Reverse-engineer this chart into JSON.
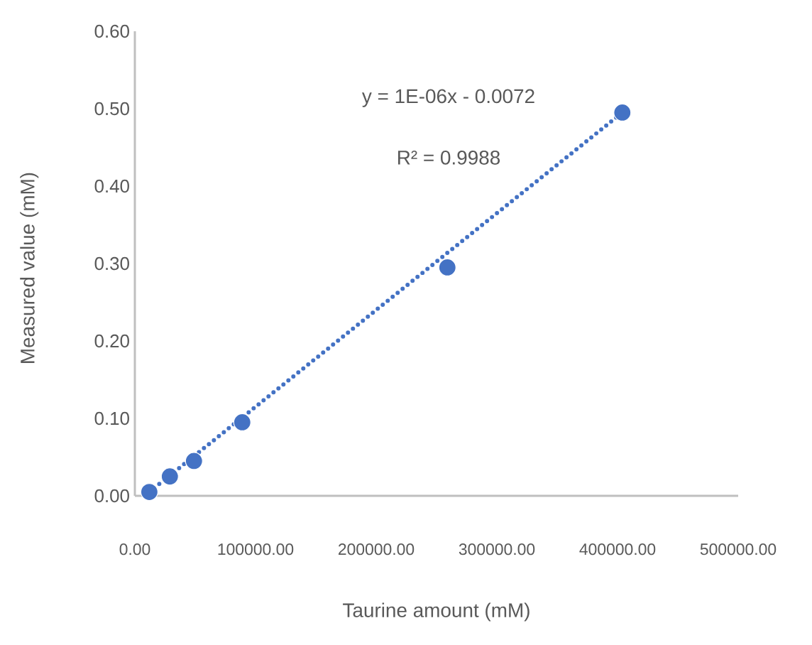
{
  "chart_data": {
    "type": "scatter",
    "xlabel": "Taurine amount (mM)",
    "ylabel": "Measured value (mM)",
    "annotations": [
      "y = 1E-06x - 0.0072",
      "R² = 0.9988"
    ],
    "xlim": [
      0,
      500000
    ],
    "ylim": [
      0,
      0.6
    ],
    "xticks": [
      {
        "value": 0,
        "label": "0.00"
      },
      {
        "value": 100000,
        "label": "100000.00"
      },
      {
        "value": 200000,
        "label": "200000.00"
      },
      {
        "value": 300000,
        "label": "300000.00"
      },
      {
        "value": 400000,
        "label": "400000.00"
      },
      {
        "value": 500000,
        "label": "500000.00"
      }
    ],
    "yticks": [
      {
        "value": 0,
        "label": "0.00"
      },
      {
        "value": 0.1,
        "label": "0.10"
      },
      {
        "value": 0.2,
        "label": "0.20"
      },
      {
        "value": 0.3,
        "label": "0.30"
      },
      {
        "value": 0.4,
        "label": "0.40"
      },
      {
        "value": 0.5,
        "label": "0.50"
      },
      {
        "value": 0.6,
        "label": "0.60"
      }
    ],
    "grid": false,
    "series": [
      {
        "color": "#4472c4",
        "marker": "circle",
        "x": [
          12000,
          29000,
          49000,
          89000,
          259000,
          404000
        ],
        "values": [
          0.005,
          0.025,
          0.045,
          0.095,
          0.295,
          0.495
        ]
      },
      {
        "type": "line",
        "color": "#4472c4",
        "marker": "none",
        "line_style": "dotted",
        "x": [
          12000,
          404000
        ],
        "values": [
          0.005,
          0.495
        ]
      }
    ]
  }
}
